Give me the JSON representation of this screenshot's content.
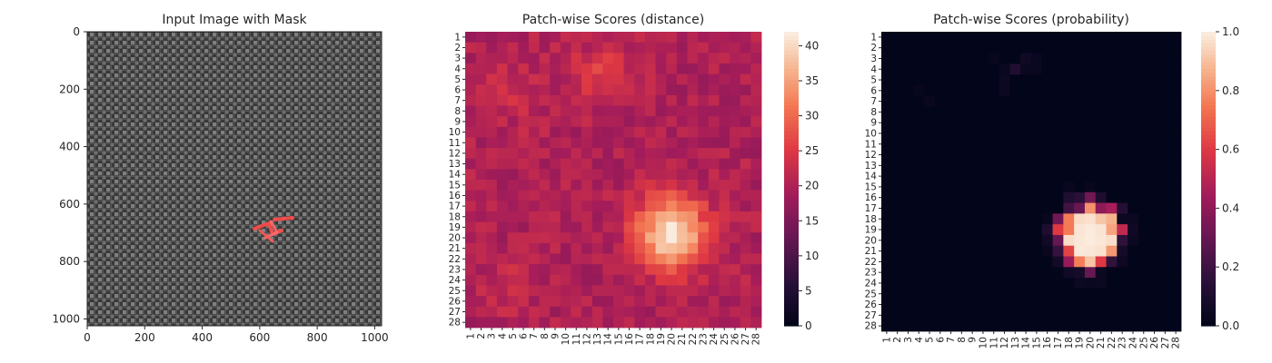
{
  "chart_data": [
    {
      "type": "image",
      "title": "Input Image with Mask",
      "xlim": [
        0,
        1024
      ],
      "ylim": [
        1024,
        0
      ],
      "xticks": [
        0,
        200,
        400,
        600,
        800,
        1000
      ],
      "yticks": [
        0,
        200,
        400,
        600,
        800,
        1000
      ],
      "mask_color": "#ff4a4a",
      "background_color": "#4a4a4a"
    },
    {
      "type": "heatmap",
      "title": "Patch-wise Scores (distance)",
      "rows": 28,
      "cols": 28,
      "xtick_labels": [
        "1",
        "2",
        "3",
        "4",
        "5",
        "6",
        "7",
        "8",
        "9",
        "10",
        "11",
        "12",
        "13",
        "14",
        "15",
        "16",
        "17",
        "18",
        "19",
        "20",
        "21",
        "22",
        "23",
        "24",
        "25",
        "26",
        "27",
        "28"
      ],
      "ytick_labels": [
        "1",
        "2",
        "3",
        "4",
        "5",
        "6",
        "7",
        "8",
        "9",
        "10",
        "11",
        "12",
        "13",
        "14",
        "15",
        "16",
        "17",
        "18",
        "19",
        "20",
        "21",
        "22",
        "23",
        "24",
        "25",
        "26",
        "27",
        "28"
      ],
      "colorbar_range": [
        0,
        42
      ],
      "colorbar_ticks": [
        0,
        5,
        10,
        15,
        20,
        25,
        30,
        35,
        40
      ],
      "colormap": "rocket"
    },
    {
      "type": "heatmap",
      "title": "Patch-wise Scores (probability)",
      "rows": 28,
      "cols": 28,
      "xtick_labels": [
        "1",
        "2",
        "3",
        "4",
        "5",
        "6",
        "7",
        "8",
        "9",
        "10",
        "11",
        "12",
        "13",
        "14",
        "15",
        "16",
        "17",
        "18",
        "19",
        "20",
        "21",
        "22",
        "23",
        "24",
        "25",
        "26",
        "27",
        "28"
      ],
      "ytick_labels": [
        "1",
        "2",
        "3",
        "4",
        "5",
        "6",
        "7",
        "8",
        "9",
        "10",
        "11",
        "12",
        "13",
        "14",
        "15",
        "16",
        "17",
        "18",
        "19",
        "20",
        "21",
        "22",
        "23",
        "24",
        "25",
        "26",
        "27",
        "28"
      ],
      "colorbar_range": [
        0,
        1
      ],
      "colorbar_ticks": [
        0.0,
        0.2,
        0.4,
        0.6,
        0.8,
        1.0
      ],
      "colormap": "rocket"
    }
  ]
}
